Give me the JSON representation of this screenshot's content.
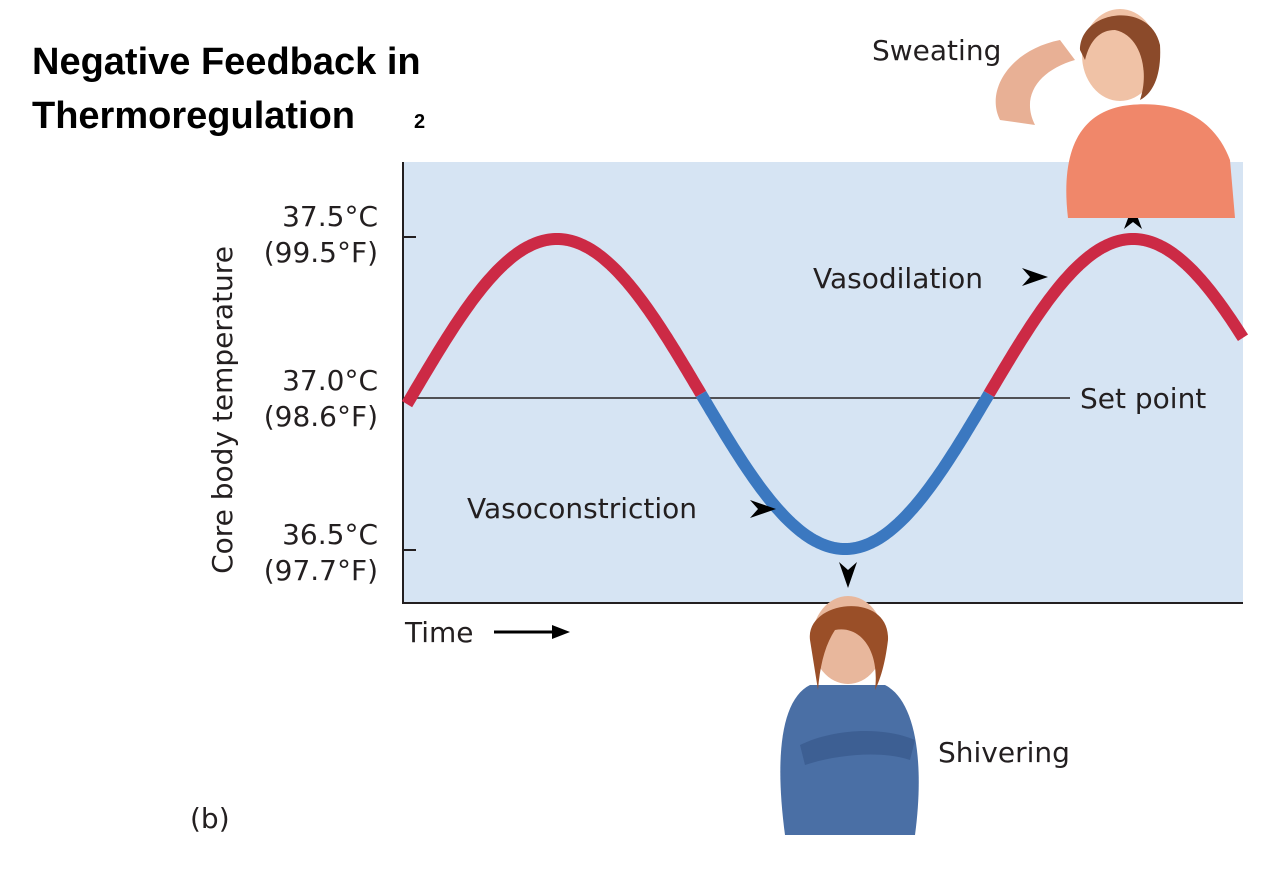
{
  "header": {
    "title_line1": "Negative Feedback in",
    "title_line2": "Thermoregulation",
    "superscript": "2"
  },
  "diagram": {
    "y_axis_label": "Core body temperature",
    "ticks": [
      {
        "celsius": "37.5°C",
        "fahrenheit": "(99.5°F)"
      },
      {
        "celsius": "37.0°C",
        "fahrenheit": "(98.6°F)"
      },
      {
        "celsius": "36.5°C",
        "fahrenheit": "(97.7°F)"
      }
    ],
    "set_point": "Set point",
    "x_axis_label": "Time",
    "vasodilation": "Vasodilation",
    "vasoconstriction": "Vasoconstriction",
    "sweating": "Sweating",
    "shivering": "Shivering",
    "panel": "(b)"
  }
}
